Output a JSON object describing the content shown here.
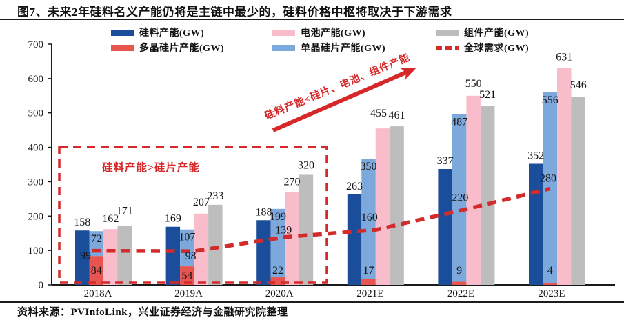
{
  "title": "图7、未来2年硅料名义产能仍将是主链中最少的，硅料价格中枢将取决于下游需求",
  "source_note": "资料来源：PVInfoLink，兴业证券经济与金融研究院整理",
  "colors": {
    "silicon_blue": "#1b4e9a",
    "poly_wafer_red": "#e8544f",
    "mono_wafer_blue": "#7da8dc",
    "cell_pink": "#f9bcca",
    "module_gray": "#bdbdbd",
    "demand_line_red": "#d22b2b",
    "annotation_red": "#d62828",
    "axis_black": "#1a1a1a",
    "label_black": "#141414"
  },
  "legend": {
    "items": [
      {
        "label": "硅料产能(GW)",
        "color": "#1b4e9a",
        "style": "solid"
      },
      {
        "label": "多晶硅片产能(GW)",
        "color": "#e8544f",
        "style": "solid"
      },
      {
        "label": "电池产能(GW)",
        "color": "#f9bcca",
        "style": "solid"
      },
      {
        "label": "单晶硅片产能(GW)",
        "color": "#7da8dc",
        "style": "solid"
      },
      {
        "label": "组件产能(GW)",
        "color": "#bdbdbd",
        "style": "solid"
      },
      {
        "label": "全球需求(GW)",
        "color": "#d22b2b",
        "style": "dashed"
      }
    ]
  },
  "annotations": {
    "box_label": "硅料产能>硅片产能",
    "arrow_label": "硅料产能<硅片、电池、组件产能"
  },
  "chart_data": {
    "type": "bar",
    "categories": [
      "2018A",
      "2019A",
      "2020A",
      "2021E",
      "2022E",
      "2023E"
    ],
    "series": [
      {
        "name": "硅料产能(GW)",
        "kind": "bar",
        "color": "#1b4e9a",
        "values": [
          158,
          169,
          188,
          263,
          337,
          352
        ]
      },
      {
        "name": "多晶硅片产能(GW)",
        "kind": "stacked-bar-bottom",
        "color": "#e8544f",
        "values": [
          84,
          54,
          22,
          17,
          9,
          4
        ]
      },
      {
        "name": "单晶硅片产能(GW)",
        "kind": "stacked-bar-top",
        "color": "#7da8dc",
        "values": [
          72,
          107,
          199,
          350,
          487,
          556
        ]
      },
      {
        "name": "电池产能(GW)",
        "kind": "bar",
        "color": "#f9bcca",
        "values": [
          162,
          207,
          270,
          455,
          550,
          631
        ]
      },
      {
        "name": "组件产能(GW)",
        "kind": "bar",
        "color": "#bdbdbd",
        "values": [
          171,
          233,
          320,
          461,
          521,
          546
        ]
      },
      {
        "name": "全球需求(GW)",
        "kind": "dashed-line",
        "color": "#d22b2b",
        "values": [
          99,
          98,
          139,
          160,
          220,
          280
        ]
      }
    ],
    "title": "",
    "xlabel": "",
    "ylabel": "",
    "ylim": [
      0,
      700
    ],
    "yticks": [
      0,
      100,
      200,
      300,
      400,
      500,
      600,
      700
    ],
    "grid": false,
    "legend_position": "top",
    "notes": "第二根柱为堆叠柱：多晶硅片(红,底)+单晶硅片(蓝,顶)；虚线为全球需求"
  }
}
